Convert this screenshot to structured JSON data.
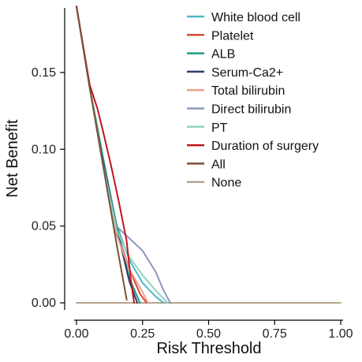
{
  "chart_data": {
    "type": "line",
    "title": "",
    "xlabel": "Risk Threshold",
    "ylabel": "Net Benefit",
    "xlim": [
      0,
      1
    ],
    "ylim": [
      0,
      0.19
    ],
    "x_ticks": [
      0,
      0.25,
      0.5,
      0.75,
      1.0
    ],
    "x_tick_labels": [
      "0.00",
      "0.25",
      "0.50",
      "0.75",
      "1.00"
    ],
    "y_ticks": [
      0,
      0.05,
      0.1,
      0.15
    ],
    "y_tick_labels": [
      "0.00",
      "0.05",
      "0.10",
      "0.15"
    ],
    "grid": false,
    "legend_position": "top-right",
    "series": [
      {
        "name": "White blood cell",
        "color": "#4fb6c9",
        "x": [
          0,
          0.05,
          0.1,
          0.15,
          0.2,
          0.25,
          0.3,
          0.33
        ],
        "y": [
          0.193,
          0.141,
          0.092,
          0.052,
          0.028,
          0.013,
          0.004,
          0
        ]
      },
      {
        "name": "Platelet",
        "color": "#d64a3a",
        "x": [
          0,
          0.05,
          0.1,
          0.15,
          0.2,
          0.24,
          0.265
        ],
        "y": [
          0.193,
          0.141,
          0.09,
          0.048,
          0.022,
          0.006,
          0
        ]
      },
      {
        "name": "ALB",
        "color": "#1b9a82",
        "x": [
          0,
          0.05,
          0.1,
          0.15,
          0.2,
          0.22,
          0.24
        ],
        "y": [
          0.193,
          0.141,
          0.095,
          0.052,
          0.016,
          0.008,
          0
        ]
      },
      {
        "name": "Serum-Ca2+",
        "color": "#2b3f6e",
        "x": [
          0,
          0.05,
          0.1,
          0.15,
          0.2,
          0.23
        ],
        "y": [
          0.193,
          0.14,
          0.092,
          0.05,
          0.014,
          0
        ]
      },
      {
        "name": "Total bilirubin",
        "color": "#f0a08a",
        "x": [
          0,
          0.05,
          0.1,
          0.15,
          0.2,
          0.25,
          0.27
        ],
        "y": [
          0.193,
          0.141,
          0.09,
          0.045,
          0.022,
          0.007,
          0
        ]
      },
      {
        "name": "Direct bilirubin",
        "color": "#8f98bd",
        "x": [
          0,
          0.05,
          0.1,
          0.15,
          0.2,
          0.25,
          0.3,
          0.33,
          0.355
        ],
        "y": [
          0.193,
          0.141,
          0.09,
          0.05,
          0.042,
          0.034,
          0.02,
          0.008,
          0
        ]
      },
      {
        "name": "PT",
        "color": "#8fd4c1",
        "x": [
          0,
          0.05,
          0.1,
          0.15,
          0.2,
          0.25,
          0.3,
          0.345
        ],
        "y": [
          0.193,
          0.141,
          0.09,
          0.048,
          0.03,
          0.018,
          0.008,
          0
        ]
      },
      {
        "name": "Duration of surgery",
        "color": "#c0161c",
        "x": [
          0,
          0.05,
          0.08,
          0.1,
          0.13,
          0.16,
          0.19,
          0.205,
          0.218
        ],
        "y": [
          0.193,
          0.142,
          0.126,
          0.112,
          0.09,
          0.066,
          0.04,
          0.016,
          0
        ]
      },
      {
        "name": "All",
        "color": "#7a5036",
        "x": [
          0,
          0.05,
          0.1,
          0.15,
          0.19
        ],
        "y": [
          0.193,
          0.14,
          0.09,
          0.04,
          0.002
        ]
      },
      {
        "name": "None",
        "color": "#b8a58c",
        "x": [
          0,
          1
        ],
        "y": [
          0,
          0
        ]
      }
    ]
  }
}
